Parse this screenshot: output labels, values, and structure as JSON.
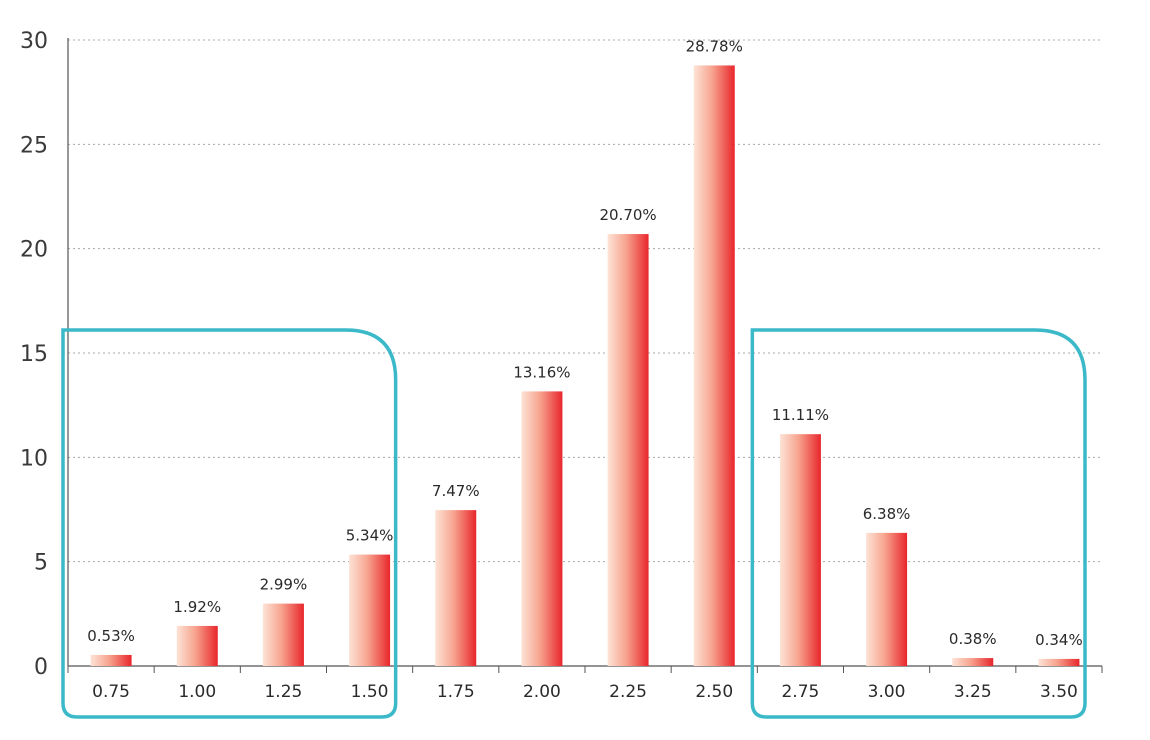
{
  "chart_data": {
    "type": "bar",
    "categories": [
      "0.75",
      "1.00",
      "1.25",
      "1.50",
      "1.75",
      "2.00",
      "2.25",
      "2.50",
      "2.75",
      "3.00",
      "3.25",
      "3.50"
    ],
    "values": [
      0.53,
      1.92,
      2.99,
      5.34,
      7.47,
      13.16,
      20.7,
      28.78,
      11.11,
      6.38,
      0.38,
      0.34
    ],
    "data_labels": [
      "0.53%",
      "1.92%",
      "2.99%",
      "5.34%",
      "7.47%",
      "13.16%",
      "20.70%",
      "28.78%",
      "11.11%",
      "6.38%",
      "0.38%",
      "0.34%"
    ],
    "y_ticks": [
      "0",
      "5",
      "10",
      "15",
      "20",
      "25",
      "30"
    ],
    "ylim": [
      0,
      30
    ],
    "grid": true,
    "colors": {
      "bar_light": "#fde3d6",
      "bar_dark": "#e8262b",
      "highlight_box": "#3bb9c9",
      "grid": "#a8a8a8",
      "axis": "#555555"
    },
    "highlight_groups": [
      {
        "from": "0.75",
        "to": "1.50"
      },
      {
        "from": "2.75",
        "to": "3.50"
      }
    ]
  }
}
